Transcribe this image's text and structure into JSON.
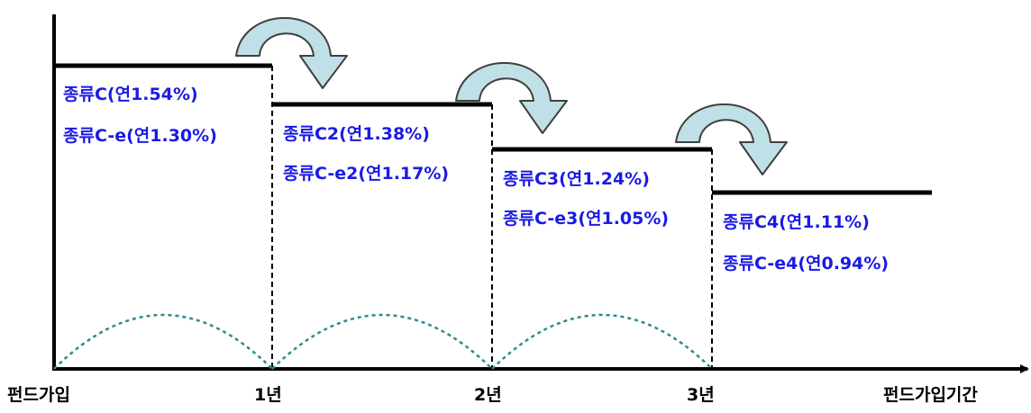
{
  "colors": {
    "fee_text": "#1a1ae6",
    "step_line": "#000000",
    "arrow_fill": "#bfe0e6",
    "arrow_stroke": "#404040",
    "arc": "#2e8b8b"
  },
  "icons": [
    "curved-down-arrow-icon"
  ],
  "periods": [
    {
      "fee_c": "종류C(연1.54%)",
      "fee_ce": "종류C-e(연1.30%)"
    },
    {
      "fee_c": "종류C2(연1.38%)",
      "fee_ce": "종류C-e2(연1.17%)"
    },
    {
      "fee_c": "종류C3(연1.24%)",
      "fee_ce": "종류C-e3(연1.05%)"
    },
    {
      "fee_c": "종류C4(연1.11%)",
      "fee_ce": "종류C-e4(연0.94%)"
    }
  ],
  "x_axis": {
    "start": "펀드가입",
    "ticks": [
      "1년",
      "2년",
      "3년"
    ],
    "title": "펀드가입기간"
  }
}
